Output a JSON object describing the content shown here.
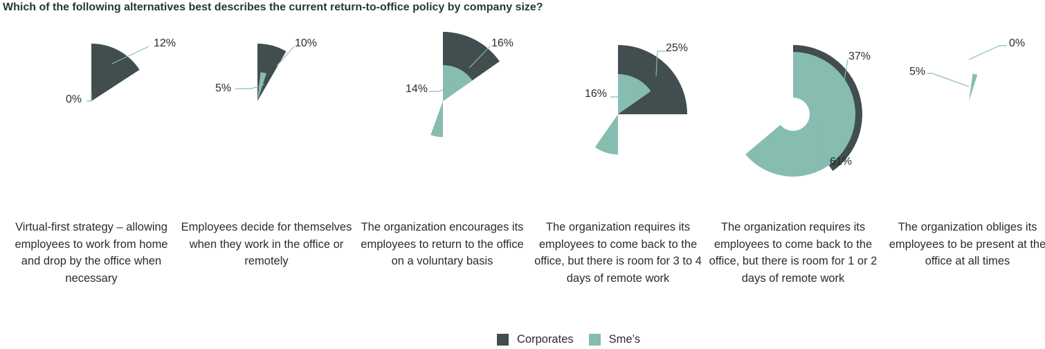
{
  "title": "Which of the following alternatives best describes the current return-to-office policy by company size?",
  "colors": {
    "corporates": "#414d4f",
    "smes": "#86bdb0",
    "leader": "#86bdb0"
  },
  "chart_data": {
    "type": "polar-area",
    "title": "Which of the following alternatives best describes the current return-to-office policy by company size?",
    "categories": [
      "Virtual-first strategy – allowing employees to work from home and drop by the office when necessary",
      "Employees decide for themselves when they work in the office or remotely",
      "The organization encourages its employees to return to the office on a voluntary basis",
      "The organization requires its employees to come back to the office, but there is room for 3 to 4 days of remote work",
      "The organization requires its employees to come back to the office, but there is room for 1 or 2 days of remote work",
      "The organization obliges its employees to be present at the office at all times"
    ],
    "series": [
      {
        "name": "Corporates",
        "values": [
          12,
          10,
          16,
          25,
          37,
          0
        ],
        "labels": [
          "12%",
          "10%",
          "16%",
          "25%",
          "37%",
          "0%"
        ]
      },
      {
        "name": "Sme’s",
        "values": [
          0,
          5,
          14,
          16,
          61,
          5
        ],
        "labels": [
          "0%",
          "5%",
          "14%",
          "16%",
          "61%",
          "5%"
        ]
      }
    ],
    "legend": {
      "position": "bottom-center",
      "entries": [
        "Corporates",
        "Sme’s"
      ]
    }
  }
}
